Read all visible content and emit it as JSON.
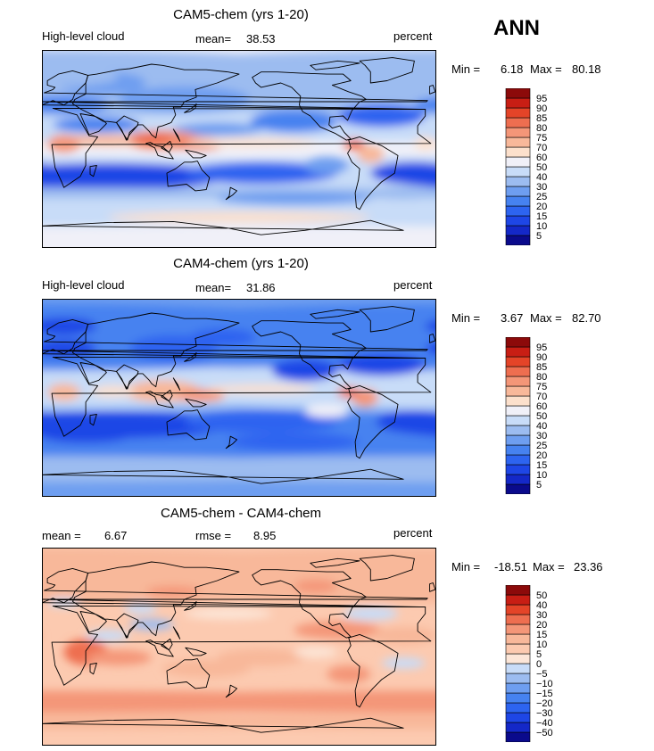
{
  "season": "ANN",
  "panels": [
    {
      "title": "CAM5-chem (yrs 1-20)",
      "left_label": "High-level cloud",
      "stat_label": "mean=",
      "stat_value": "38.53",
      "units": "percent",
      "min_label": "Min =",
      "min_value": "6.18",
      "max_label": "Max =",
      "max_value": "80.18"
    },
    {
      "title": "CAM4-chem (yrs 1-20)",
      "left_label": "High-level cloud",
      "stat_label": "mean=",
      "stat_value": "31.86",
      "units": "percent",
      "min_label": "Min =",
      "min_value": "3.67",
      "max_label": "Max =",
      "max_value": "82.70"
    },
    {
      "title": "CAM5-chem - CAM4-chem",
      "left_label": "mean =",
      "left_value": "6.67",
      "stat_label": "rmse =",
      "stat_value": "8.95",
      "units": "percent",
      "min_label": "Min =",
      "min_value": "-18.51",
      "max_label": "Max =",
      "max_value": "23.36"
    }
  ],
  "chart_data": [
    {
      "type": "heatmap",
      "title": "CAM5-chem (yrs 1-20)",
      "variable": "High-level cloud",
      "units": "percent",
      "mean": 38.53,
      "min": 6.18,
      "max": 80.18,
      "colorbar_levels": [
        5,
        10,
        15,
        20,
        25,
        30,
        40,
        50,
        60,
        70,
        75,
        80,
        85,
        90,
        95
      ],
      "colors": [
        "#0a0a8c",
        "#1428c8",
        "#1e46e6",
        "#2d64f0",
        "#4682f0",
        "#6e9ef0",
        "#9cbcf0",
        "#c8dcf8",
        "#f0f0f8",
        "#fce0cc",
        "#f8b89a",
        "#f49678",
        "#ee6e50",
        "#e44428",
        "#c81e14",
        "#8c0a0a"
      ]
    },
    {
      "type": "heatmap",
      "title": "CAM4-chem (yrs 1-20)",
      "variable": "High-level cloud",
      "units": "percent",
      "mean": 31.86,
      "min": 3.67,
      "max": 82.7,
      "colorbar_levels": [
        5,
        10,
        15,
        20,
        25,
        30,
        40,
        50,
        60,
        70,
        75,
        80,
        85,
        90,
        95
      ],
      "colors": [
        "#0a0a8c",
        "#1428c8",
        "#1e46e6",
        "#2d64f0",
        "#4682f0",
        "#6e9ef0",
        "#9cbcf0",
        "#c8dcf8",
        "#f0f0f8",
        "#fce0cc",
        "#f8b89a",
        "#f49678",
        "#ee6e50",
        "#e44428",
        "#c81e14",
        "#8c0a0a"
      ]
    },
    {
      "type": "heatmap",
      "title": "CAM5-chem - CAM4-chem",
      "units": "percent",
      "mean": 6.67,
      "rmse": 8.95,
      "min": -18.51,
      "max": 23.36,
      "colorbar_levels": [
        -50,
        -40,
        -30,
        -20,
        -15,
        -10,
        -5,
        0,
        5,
        10,
        15,
        20,
        30,
        40,
        50
      ],
      "colors": [
        "#0a0a8c",
        "#1428c8",
        "#1e46e6",
        "#2d64f0",
        "#4682f0",
        "#6e9ef0",
        "#9cbcf0",
        "#c8dcf8",
        "#fce6d8",
        "#fccab0",
        "#f8b89a",
        "#f49678",
        "#ee6e50",
        "#e44428",
        "#c81e14",
        "#8c0a0a"
      ]
    }
  ]
}
